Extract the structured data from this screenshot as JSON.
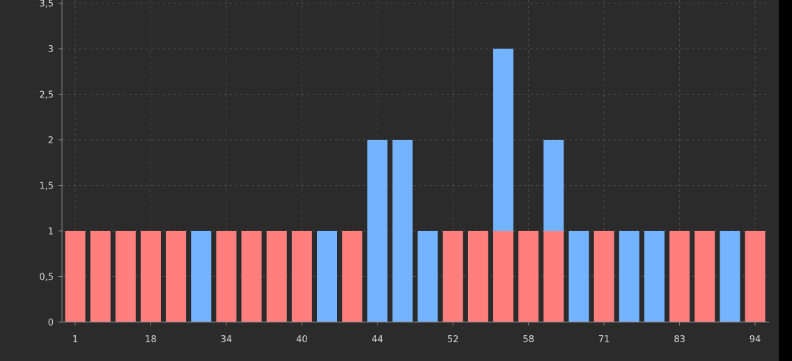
{
  "chart_data": {
    "type": "bar",
    "stacked": true,
    "title": "",
    "xlabel": "",
    "ylabel": "",
    "ylim": [
      0,
      3.5
    ],
    "yticks": [
      "0",
      "0,5",
      "1",
      "1,5",
      "2",
      "2,5",
      "3",
      "3,5"
    ],
    "xtick_labels": [
      {
        "index": 0,
        "label": "1"
      },
      {
        "index": 3,
        "label": "18"
      },
      {
        "index": 6,
        "label": "34"
      },
      {
        "index": 9,
        "label": "40"
      },
      {
        "index": 12,
        "label": "44"
      },
      {
        "index": 15,
        "label": "52"
      },
      {
        "index": 18,
        "label": "58"
      },
      {
        "index": 21,
        "label": "71"
      },
      {
        "index": 24,
        "label": "83"
      },
      {
        "index": 27,
        "label": "94"
      }
    ],
    "bar_count": 28,
    "grid": true,
    "legend": "none",
    "series": [
      {
        "color": "#ff7f7f",
        "values": [
          1,
          1,
          1,
          1,
          1,
          0,
          1,
          1,
          1,
          1,
          0,
          1,
          0,
          0,
          0,
          1,
          1,
          1,
          1,
          1,
          0,
          1,
          0,
          0,
          1,
          1,
          0,
          1
        ]
      },
      {
        "color": "#74b3ff",
        "values": [
          0,
          0,
          0,
          0,
          0,
          1,
          0,
          0,
          0,
          0,
          1,
          0,
          2,
          2,
          1,
          0,
          0,
          2,
          0,
          1,
          1,
          0,
          1,
          1,
          0,
          0,
          1,
          0
        ]
      }
    ]
  }
}
